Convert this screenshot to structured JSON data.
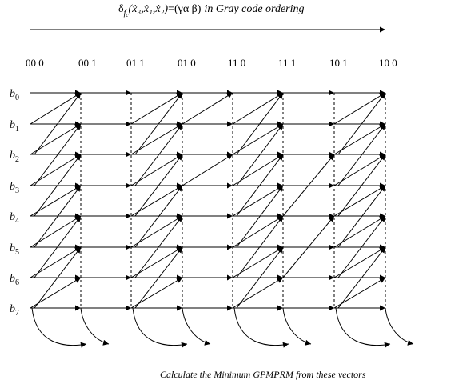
{
  "title": {
    "delta": "δ",
    "f": "f",
    "c": "c",
    "args": "(ẋ₃,ẋ₁,ẋ₂)",
    "eq": "=(γα  β)",
    "tail": "in Gray code ordering"
  },
  "columns": [
    "00 0",
    "00 1",
    "01 1",
    "01 0",
    "11 0",
    "11 1",
    "10 1",
    "10 0"
  ],
  "rows": [
    {
      "b": "b",
      "sub": "0"
    },
    {
      "b": "b",
      "sub": "1"
    },
    {
      "b": "b",
      "sub": "2"
    },
    {
      "b": "b",
      "sub": "3"
    },
    {
      "b": "b",
      "sub": "4"
    },
    {
      "b": "b",
      "sub": "5"
    },
    {
      "b": "b",
      "sub": "6"
    },
    {
      "b": "b",
      "sub": "7"
    }
  ],
  "footer": "Calculate the Minimum GPMPRM from these vectors"
}
